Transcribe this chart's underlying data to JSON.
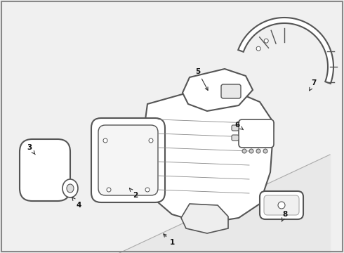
{
  "background_color": "#f0f0f0",
  "line_color": "#555555",
  "figsize": [
    4.9,
    3.6
  ],
  "dpi": 100,
  "labels_data": [
    [
      "1",
      230,
      330,
      245,
      345
    ],
    [
      "2",
      182,
      265,
      193,
      278
    ],
    [
      "3",
      52,
      222,
      42,
      210
    ],
    [
      "4",
      102,
      280,
      112,
      292
    ],
    [
      "5",
      298,
      132,
      282,
      102
    ],
    [
      "6",
      347,
      185,
      338,
      178
    ],
    [
      "7",
      440,
      130,
      447,
      118
    ],
    [
      "8",
      400,
      318,
      406,
      305
    ]
  ]
}
